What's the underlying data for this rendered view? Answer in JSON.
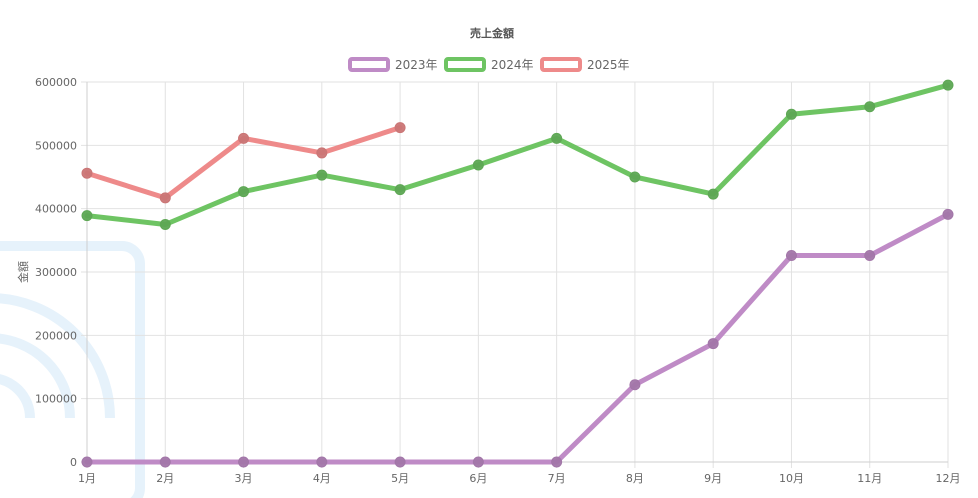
{
  "chart_data": {
    "type": "line",
    "title": "売上金額",
    "ylabel": "金額",
    "xlabel": "",
    "categories": [
      "1月",
      "2月",
      "3月",
      "4月",
      "5月",
      "6月",
      "7月",
      "8月",
      "9月",
      "10月",
      "11月",
      "12月"
    ],
    "ylim": [
      0,
      600000
    ],
    "yticks": [
      0,
      100000,
      200000,
      300000,
      400000,
      500000,
      600000
    ],
    "grid": true,
    "legend_position": "top",
    "series": [
      {
        "name": "2023年",
        "color": "#bf8bc6",
        "values": [
          0,
          0,
          0,
          0,
          0,
          0,
          0,
          122000,
          187000,
          326000,
          326000,
          391000
        ]
      },
      {
        "name": "2024年",
        "color": "#6ec463",
        "values": [
          389000,
          375000,
          427000,
          453000,
          430000,
          469000,
          511000,
          450000,
          423000,
          549000,
          561000,
          595000
        ]
      },
      {
        "name": "2025年",
        "color": "#ee8a8a",
        "values": [
          456000,
          417000,
          511000,
          488000,
          528000,
          null,
          null,
          null,
          null,
          null,
          null,
          null
        ]
      }
    ]
  }
}
